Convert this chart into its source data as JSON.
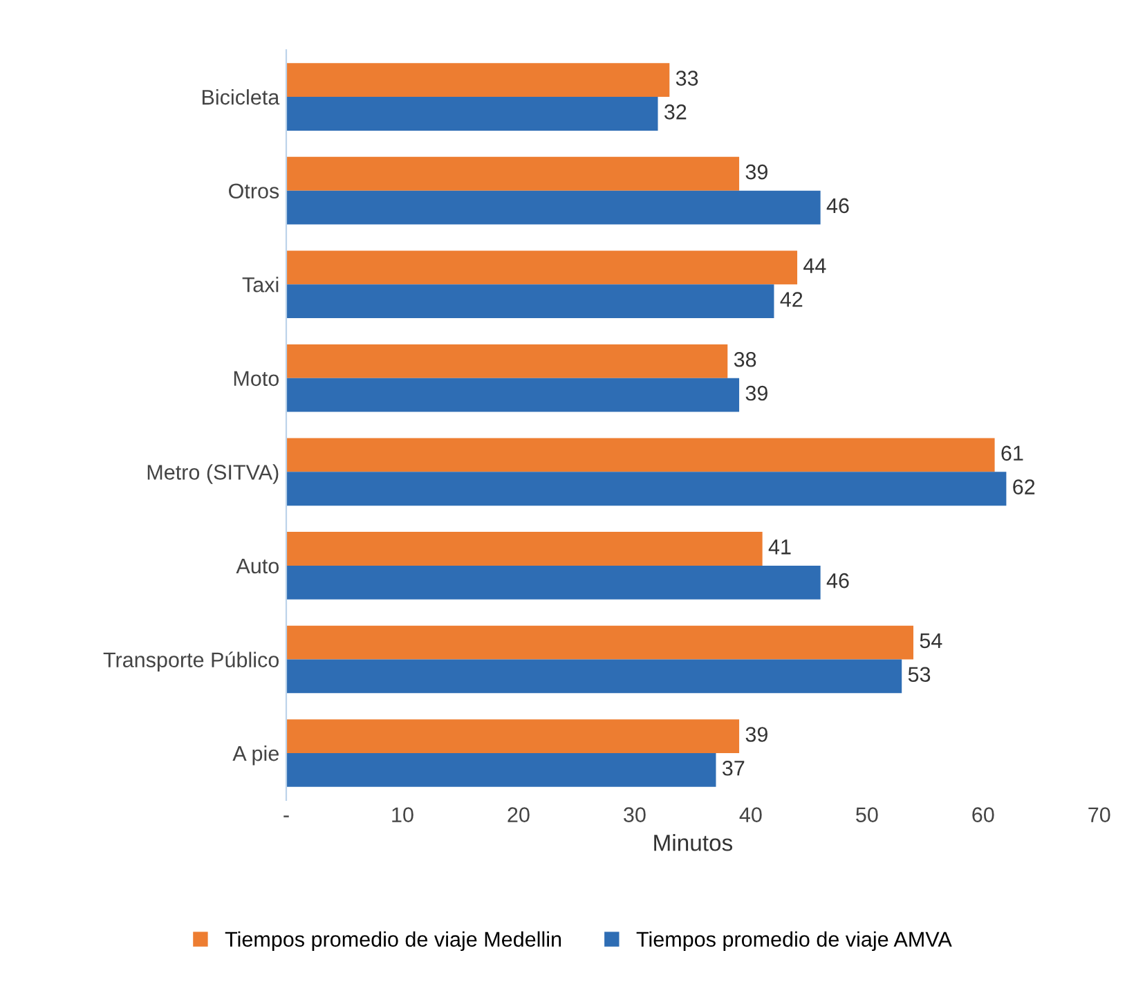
{
  "chart_data": {
    "type": "bar",
    "orientation": "horizontal",
    "xlabel": "Minutos",
    "categories": [
      "Bicicleta",
      "Otros",
      "Taxi",
      "Moto",
      "Metro (SITVA)",
      "Auto",
      "Transporte Público",
      "A pie"
    ],
    "series": [
      {
        "name": "Tiempos promedio de viaje Medellin",
        "color": "#ed7d31",
        "values": [
          33,
          39,
          44,
          38,
          61,
          41,
          54,
          39
        ]
      },
      {
        "name": "Tiempos promedio de viaje AMVA",
        "color": "#2e6db4",
        "values": [
          32,
          46,
          42,
          39,
          62,
          46,
          53,
          37
        ]
      }
    ],
    "xlim": [
      0,
      70
    ],
    "xticks": [
      {
        "value": 0,
        "label": "-"
      },
      10,
      20,
      30,
      40,
      50,
      60,
      70
    ],
    "data_labels": true,
    "grid": false,
    "legend": "bottom"
  }
}
